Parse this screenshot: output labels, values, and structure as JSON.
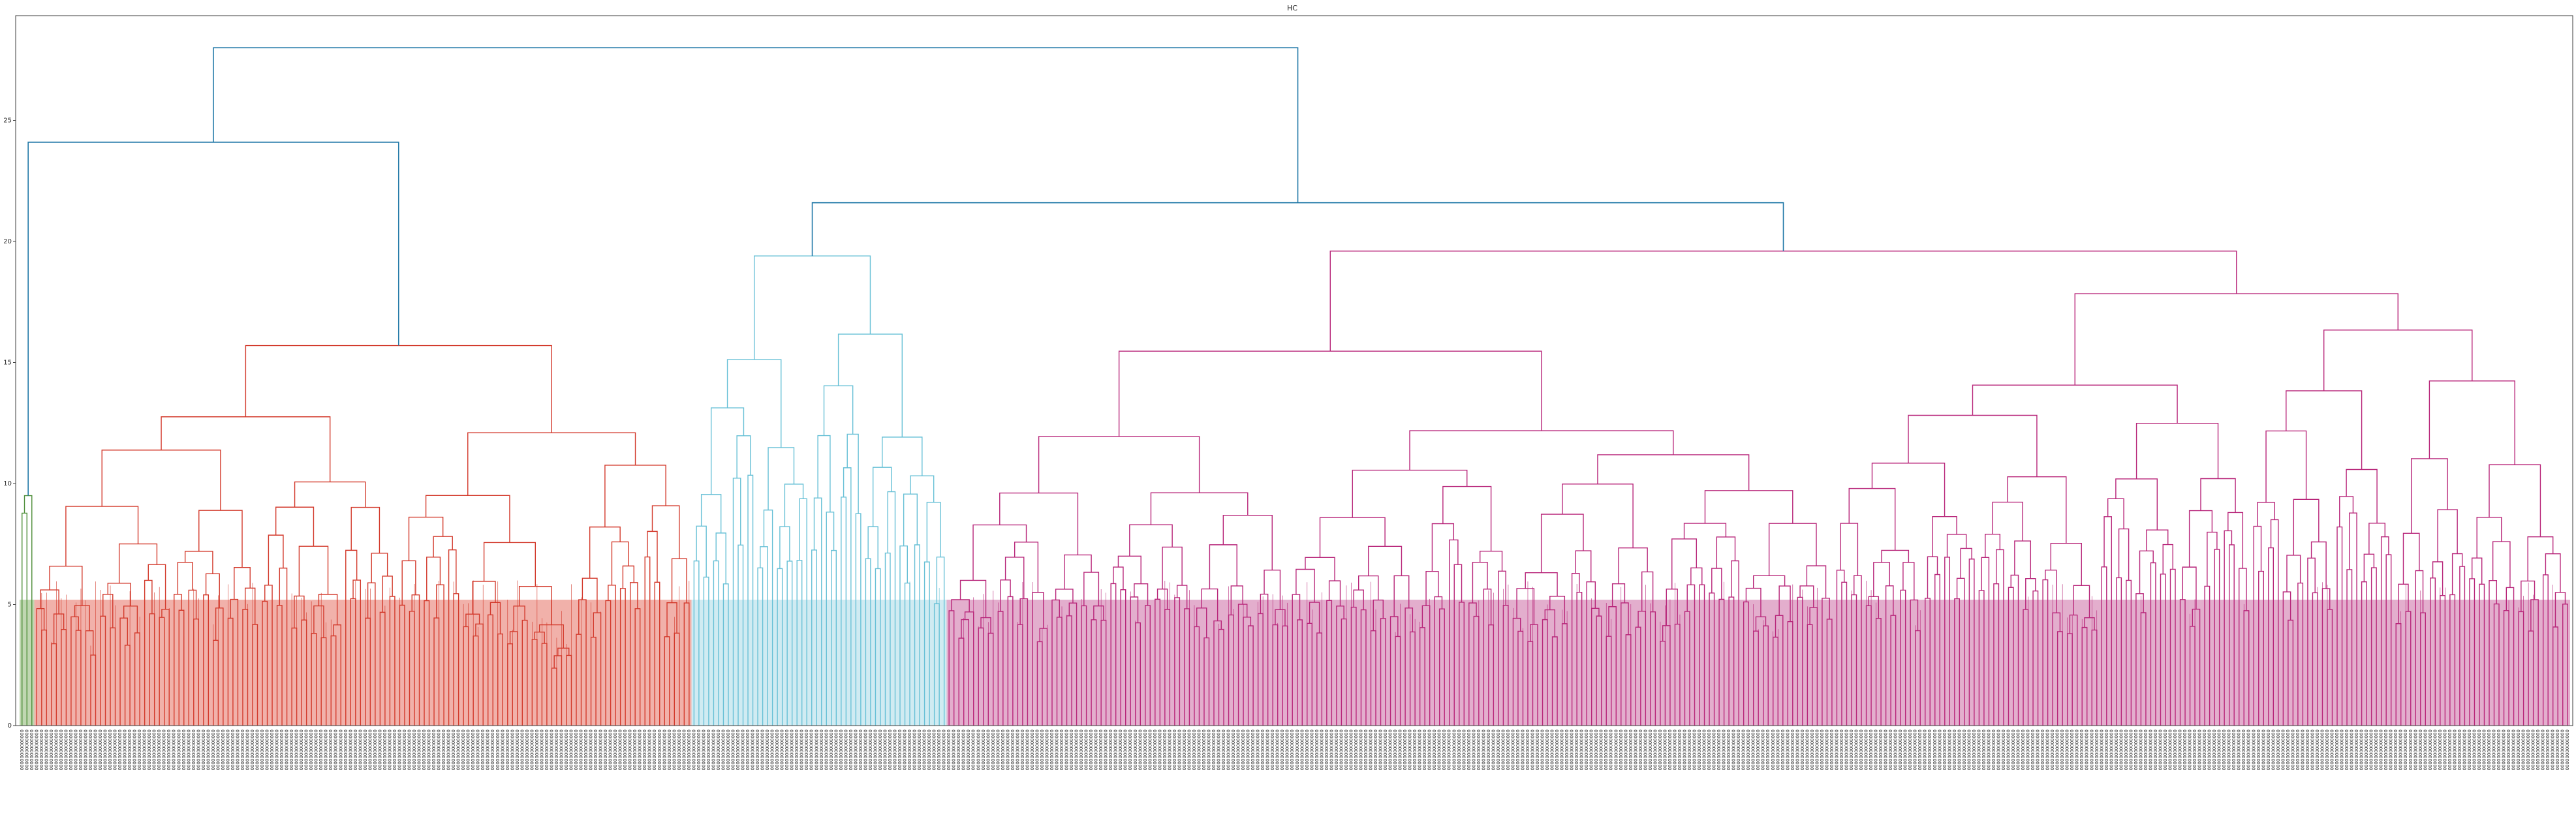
{
  "chart_data": {
    "type": "dendrogram",
    "title": "HC",
    "xlabel": "",
    "ylabel": "",
    "ylim": [
      0,
      28.5
    ],
    "yticks": [
      0,
      5,
      10,
      15,
      20,
      25
    ],
    "grid": false,
    "n_leaves": 520,
    "leaf_label_sample": "00000000000000",
    "clusters": [
      {
        "color": "#4f8f3a",
        "fill": "#b9d3a8",
        "leaf_count": 3,
        "root_height": 9.5,
        "branch_heights": [
          9.5,
          3.0
        ]
      },
      {
        "color": "#d33a2c",
        "fill": "#efa9a1",
        "leaf_count": 134,
        "root_height": 15.7,
        "branch_heights": [
          12.1,
          11.2,
          10.2,
          9.4,
          8.2,
          7.2,
          6.1,
          5.1,
          13.1,
          11.8,
          10.4,
          9.0,
          7.6,
          6.4,
          5.4
        ]
      },
      {
        "color": "#67c0d6",
        "fill": "#cbe9f1",
        "leaf_count": 52,
        "root_height": 19.4,
        "branch_heights": [
          16.4,
          15.2,
          13.1,
          12.4,
          11.1,
          10.2,
          9.3,
          8.6,
          7.7,
          6.7,
          5.8,
          5.0,
          4.2
        ]
      },
      {
        "color": "#b8267a",
        "fill": "#e0a5c8",
        "leaf_count": 331,
        "root_height": 19.6,
        "branch_heights": [
          17.2,
          16.1,
          15.2,
          14.6,
          13.8,
          12.6,
          11.9,
          10.8,
          9.8,
          8.9,
          8.1,
          7.2,
          6.4,
          5.6,
          4.8,
          3.9,
          1.5
        ]
      }
    ],
    "above_threshold_links": [
      {
        "color": "#2279a8",
        "height": 28.0,
        "joins": "cluster 0-1 group with clusters 2-3 group"
      },
      {
        "color": "#2279a8",
        "height": 24.1,
        "joins": "cluster 1 with cluster 0"
      },
      {
        "color": "#2279a8",
        "height": 21.6,
        "joins": "cluster 2 with cluster 3"
      }
    ]
  }
}
